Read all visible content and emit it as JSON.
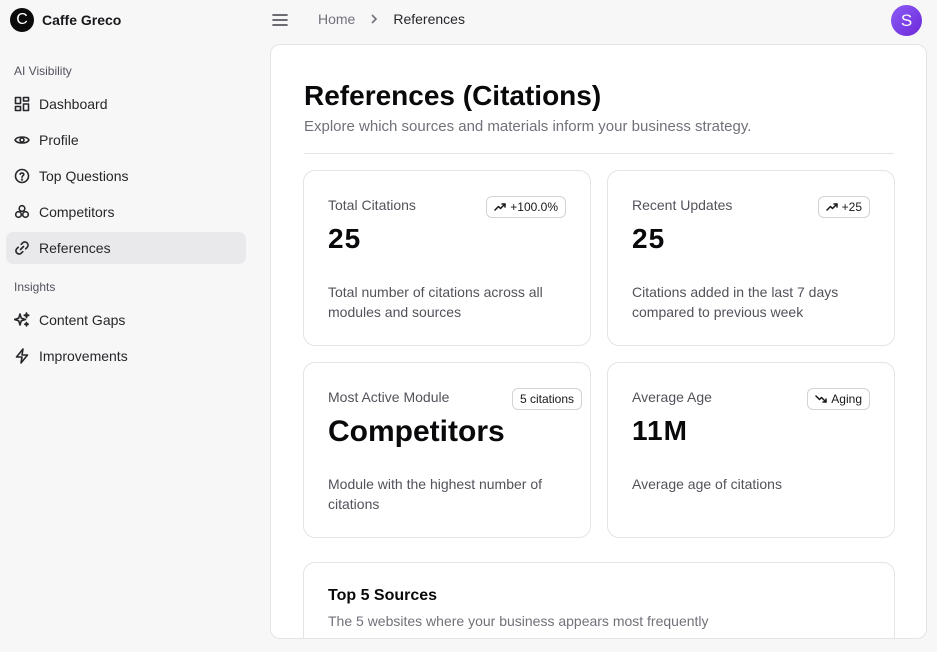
{
  "brand": {
    "logo_letter": "C",
    "name": "Caffe Greco"
  },
  "sidebar": {
    "sections": [
      {
        "label": "AI Visibility"
      },
      {
        "label": "Insights"
      }
    ],
    "items": [
      {
        "label": "Dashboard",
        "icon": "dashboard-icon"
      },
      {
        "label": "Profile",
        "icon": "eye-icon"
      },
      {
        "label": "Top Questions",
        "icon": "question-circle-icon"
      },
      {
        "label": "Competitors",
        "icon": "boxes-icon"
      },
      {
        "label": "References",
        "icon": "link-icon",
        "active": true
      },
      {
        "label": "Content Gaps",
        "icon": "sparkles-icon"
      },
      {
        "label": "Improvements",
        "icon": "zap-icon"
      }
    ]
  },
  "topbar": {
    "breadcrumb": {
      "home": "Home",
      "current": "References"
    },
    "avatar_initial": "S"
  },
  "page": {
    "title": "References (Citations)",
    "subtitle": "Explore which sources and materials inform your business strategy."
  },
  "cards": [
    {
      "label": "Total Citations",
      "value": "25",
      "badge": "+100.0%",
      "badge_icon": "trending-up-icon",
      "description": "Total number of citations across all modules and sources"
    },
    {
      "label": "Recent Updates",
      "value": "25",
      "badge": "+25",
      "badge_icon": "trending-up-icon",
      "description": "Citations added in the last 7 days compared to previous week"
    },
    {
      "label": "Most Active Module",
      "value": "Competitors",
      "badge": "5 citations",
      "badge_icon": "",
      "description": "Module with the highest number of citations"
    },
    {
      "label": "Average Age",
      "value": "11M",
      "badge": "Aging",
      "badge_icon": "trending-down-icon",
      "description": "Average age of citations"
    }
  ],
  "sources": {
    "title": "Top 5 Sources",
    "subtitle": "The 5 websites where your business appears most frequently"
  },
  "colors": {
    "accent": "#7c3aed",
    "active_bg": "#e9e9ec",
    "text": "#18181b",
    "muted": "#71717a"
  }
}
